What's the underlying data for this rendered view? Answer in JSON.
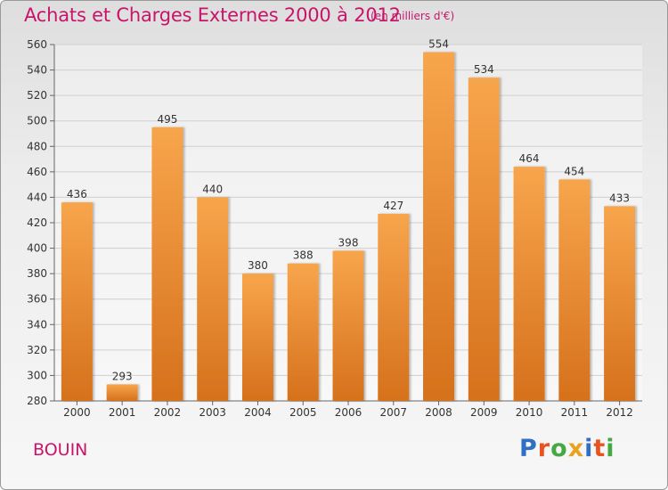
{
  "header": {
    "title": "Achats et Charges Externes 2000 à 2012",
    "subtitle": "(en milliers d'€)"
  },
  "commune": "BOUIN",
  "logo": {
    "text": "Proxiti",
    "letters": [
      {
        "ch": "P",
        "color": "#2f6fc4"
      },
      {
        "ch": "r",
        "color": "#e8531f"
      },
      {
        "ch": "o",
        "color": "#46a843"
      },
      {
        "ch": "x",
        "color": "#e8a21f"
      },
      {
        "ch": "i",
        "color": "#2f6fc4"
      },
      {
        "ch": "t",
        "color": "#e8531f"
      },
      {
        "ch": "i",
        "color": "#46a843"
      }
    ]
  },
  "colors": {
    "accent": "#c8156a",
    "bar_top": "#f7a54c",
    "bar_bottom": "#d6711c",
    "grid": "#d0d0d0"
  },
  "chart_data": {
    "type": "bar",
    "title": "Achats et Charges Externes 2000 à 2012",
    "subtitle": "(en milliers d'€)",
    "categories": [
      "2000",
      "2001",
      "2002",
      "2003",
      "2004",
      "2005",
      "2006",
      "2007",
      "2008",
      "2009",
      "2010",
      "2011",
      "2012"
    ],
    "values": [
      436,
      293,
      495,
      440,
      380,
      388,
      398,
      427,
      554,
      534,
      464,
      454,
      433
    ],
    "ylim": [
      280,
      560
    ],
    "yticks": [
      280,
      300,
      320,
      340,
      360,
      380,
      400,
      420,
      440,
      460,
      480,
      500,
      520,
      540,
      560
    ],
    "grid": true,
    "xlabel": "",
    "ylabel": ""
  }
}
